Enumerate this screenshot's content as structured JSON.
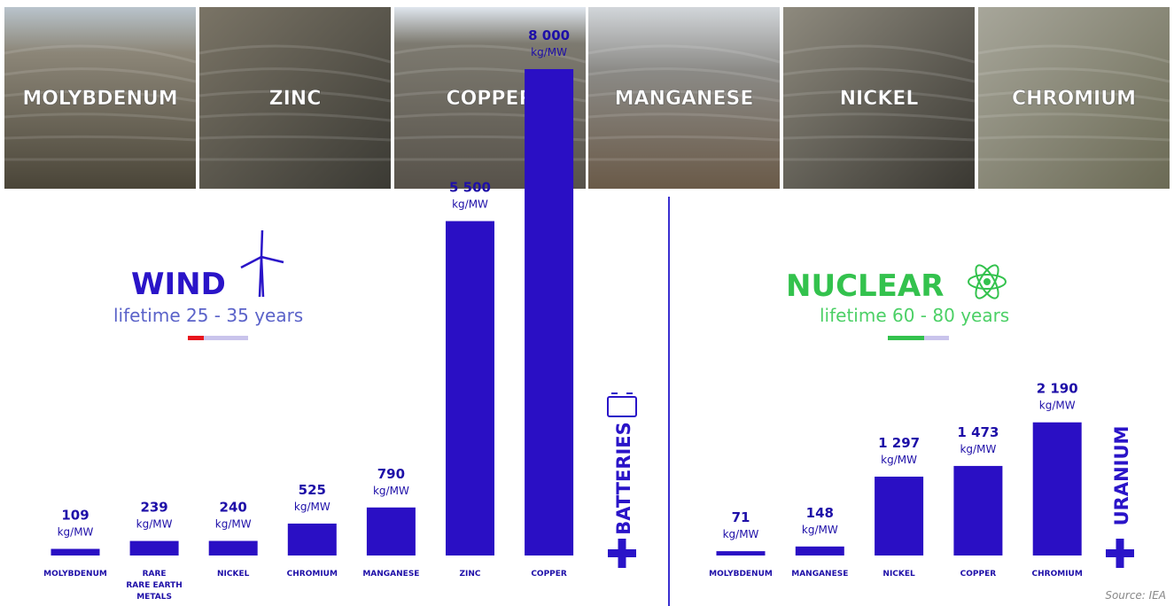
{
  "photos": [
    "MOLYBDENUM",
    "ZINC",
    "COPPER",
    "MANGANESE",
    "NICKEL",
    "CHROMIUM"
  ],
  "source": "Source: IEA",
  "chart_data": [
    {
      "type": "bar",
      "title": "WIND",
      "subtitle": "lifetime 25 - 35 years",
      "unit": "kg/MW",
      "color": "#2a0fc4",
      "categories": [
        "MOLYBDENUM",
        "RARE\nRARE EARTH\nMETALS",
        "NICKEL",
        "CHROMIUM",
        "MANGANESE",
        "ZINC",
        "COPPER"
      ],
      "values": [
        109,
        239,
        240,
        525,
        790,
        5500,
        8000
      ],
      "value_labels": [
        "109",
        "239",
        "240",
        "525",
        "790",
        "5 500",
        "8 000"
      ],
      "extra": "BATTERIES"
    },
    {
      "type": "bar",
      "title": "NUCLEAR",
      "subtitle": "lifetime 60 - 80 years",
      "unit": "kg/MW",
      "color": "#2a0fc4",
      "categories": [
        "MOLYBDENUM",
        "MANGANESE",
        "NICKEL",
        "COPPER",
        "CHROMIUM"
      ],
      "values": [
        71,
        148,
        1297,
        1473,
        2190
      ],
      "value_labels": [
        "71",
        "148",
        "1 297",
        "1 473",
        "2 190"
      ],
      "extra": "URANIUM"
    }
  ]
}
